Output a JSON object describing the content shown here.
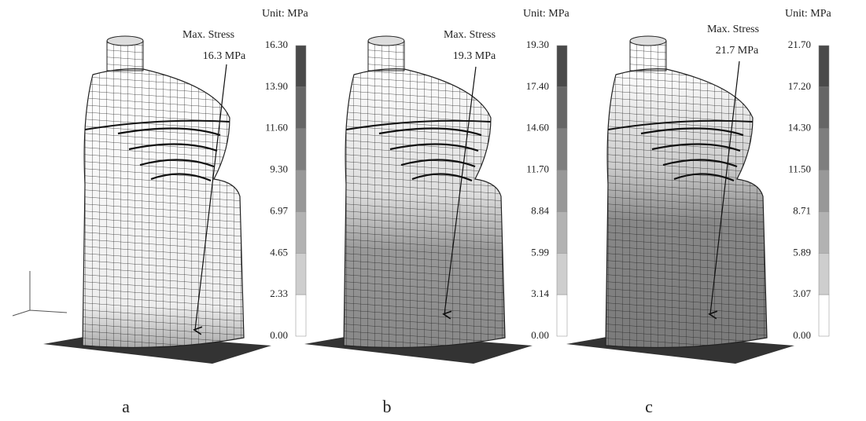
{
  "panels": [
    {
      "label": "a",
      "unit": "Unit: MPa",
      "annotation": [
        "Max. Stress",
        "16.3 MPa"
      ],
      "scale": [
        "16.30",
        "13.90",
        "11.60",
        "9.30",
        "6.97",
        "4.65",
        "2.33",
        "0.00"
      ]
    },
    {
      "label": "b",
      "unit": "Unit: MPa",
      "annotation": [
        "Max. Stress",
        "19.3 MPa"
      ],
      "scale": [
        "19.30",
        "17.40",
        "14.60",
        "11.70",
        "8.84",
        "5.99",
        "3.14",
        "0.00"
      ]
    },
    {
      "label": "c",
      "unit": "Unit: MPa",
      "annotation": [
        "Max. Stress",
        "21.7 MPa"
      ],
      "scale": [
        "21.70",
        "17.20",
        "14.30",
        "11.50",
        "8.71",
        "5.89",
        "3.07",
        "0.00"
      ]
    }
  ]
}
